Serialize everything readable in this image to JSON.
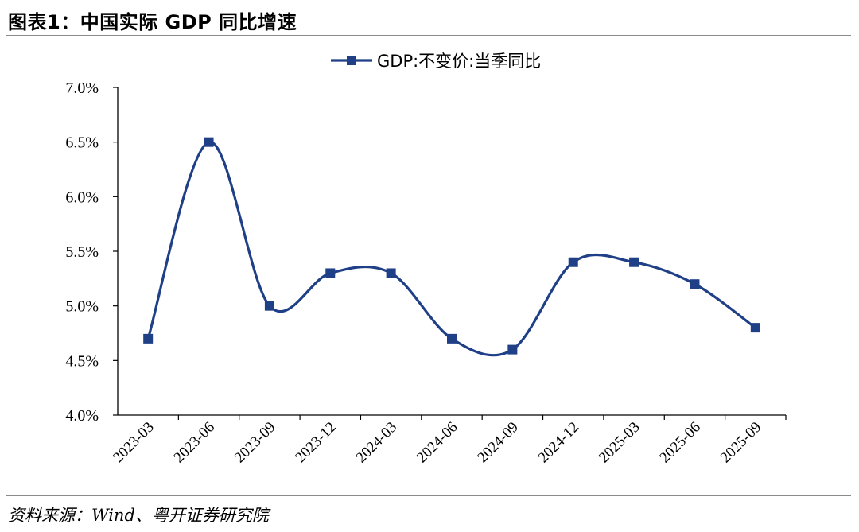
{
  "figure": {
    "title": "图表1：中国实际 GDP 同比增速",
    "source": "资料来源：Wind、粤开证券研究院"
  },
  "chart_data": {
    "type": "line",
    "categories": [
      "2023-03",
      "2023-06",
      "2023-09",
      "2023-12",
      "2024-03",
      "2024-06",
      "2024-09",
      "2024-12",
      "2025-03",
      "2025-06",
      "2025-09"
    ],
    "series": [
      {
        "name": "GDP:不变价:当季同比",
        "values": [
          4.7,
          6.5,
          5.0,
          5.3,
          5.3,
          4.7,
          4.6,
          5.4,
          5.4,
          5.2,
          4.8
        ],
        "color": "#1f3f86",
        "marker": "square",
        "smooth": true
      }
    ],
    "ylim": [
      4.0,
      7.0
    ],
    "yticks": [
      4.0,
      4.5,
      5.0,
      5.5,
      6.0,
      6.5,
      7.0
    ],
    "ytick_labels": [
      "4.0%",
      "4.5%",
      "5.0%",
      "5.5%",
      "6.0%",
      "6.5%",
      "7.0%"
    ],
    "xlabel": "",
    "ylabel": "",
    "grid": false,
    "legend_position": "top-center"
  }
}
